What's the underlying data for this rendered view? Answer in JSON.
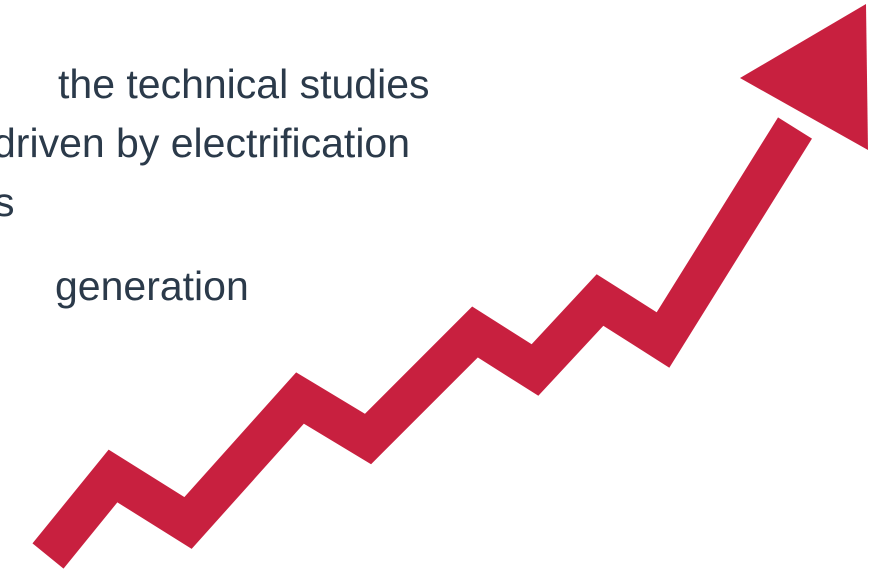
{
  "slide": {
    "text_lines": [
      "the technical studies",
      "driven by electrification",
      "s",
      "generation"
    ]
  },
  "colors": {
    "arrow": "#c8203f",
    "text": "#2b3a4a",
    "background": "#ffffff"
  },
  "graphic": {
    "icon": "zigzag-up-arrow-icon"
  }
}
